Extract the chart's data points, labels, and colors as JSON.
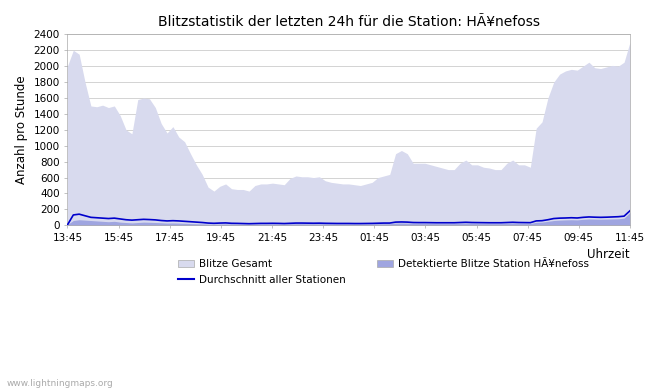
{
  "title": "Blitzstatistik der letzten 24h für die Station: HÃ¥nefoss",
  "xlabel": "Uhrzeit",
  "ylabel": "Anzahl pro Stunde",
  "ylim": [
    0,
    2400
  ],
  "yticks": [
    0,
    200,
    400,
    600,
    800,
    1000,
    1200,
    1400,
    1600,
    1800,
    2000,
    2200,
    2400
  ],
  "xtick_labels": [
    "13:45",
    "15:45",
    "17:45",
    "19:45",
    "21:45",
    "23:45",
    "01:45",
    "03:45",
    "05:45",
    "07:45",
    "09:45",
    "11:45"
  ],
  "bg_color": "#ffffff",
  "grid_color": "#cccccc",
  "fill_color_gesamt": "#d8daee",
  "fill_color_station": "#9fa5e0",
  "line_color": "#0000cc",
  "watermark": "www.lightningmaps.org",
  "legend": {
    "blitze_gesamt": "Blitze Gesamt",
    "durchschnitt": "Durchschnitt aller Stationen",
    "detektierte": "Detektierte Blitze Station HÃ¥nefoss"
  },
  "gesamt_data": [
    2000,
    2200,
    2150,
    1800,
    1500,
    1490,
    1510,
    1480,
    1500,
    1380,
    1200,
    1150,
    1580,
    1600,
    1590,
    1480,
    1280,
    1160,
    1240,
    1110,
    1050,
    900,
    760,
    640,
    480,
    430,
    490,
    520,
    460,
    450,
    450,
    430,
    500,
    520,
    520,
    530,
    520,
    510,
    590,
    620,
    610,
    610,
    600,
    610,
    560,
    540,
    530,
    520,
    520,
    510,
    500,
    520,
    540,
    600,
    620,
    640,
    900,
    940,
    900,
    780,
    780,
    780,
    760,
    740,
    720,
    700,
    700,
    780,
    820,
    760,
    760,
    730,
    720,
    700,
    700,
    780,
    820,
    760,
    760,
    730,
    1220,
    1300,
    1600,
    1800,
    1900,
    1940,
    1960,
    1950,
    2000,
    2050,
    1980,
    1970,
    1990,
    2010,
    2000,
    2050,
    2300
  ],
  "station_data": [
    10,
    60,
    70,
    65,
    60,
    55,
    50,
    45,
    50,
    40,
    35,
    30,
    35,
    40,
    38,
    35,
    32,
    28,
    30,
    28,
    25,
    22,
    20,
    18,
    15,
    14,
    16,
    18,
    15,
    14,
    13,
    12,
    14,
    15,
    15,
    16,
    15,
    14,
    18,
    20,
    20,
    19,
    18,
    19,
    18,
    17,
    16,
    16,
    16,
    15,
    15,
    16,
    17,
    19,
    20,
    20,
    28,
    30,
    28,
    25,
    24,
    24,
    23,
    22,
    22,
    22,
    22,
    25,
    28,
    25,
    24,
    23,
    22,
    22,
    22,
    25,
    28,
    25,
    24,
    23,
    38,
    40,
    50,
    60,
    65,
    68,
    70,
    68,
    75,
    80,
    78,
    76,
    78,
    80,
    82,
    90,
    162
  ],
  "avg_data": [
    5,
    130,
    140,
    120,
    100,
    95,
    90,
    85,
    90,
    80,
    70,
    65,
    70,
    75,
    72,
    68,
    60,
    55,
    58,
    55,
    50,
    45,
    40,
    35,
    28,
    25,
    28,
    30,
    25,
    24,
    22,
    20,
    22,
    24,
    24,
    25,
    24,
    22,
    25,
    28,
    28,
    27,
    26,
    27,
    25,
    24,
    23,
    23,
    23,
    22,
    22,
    23,
    24,
    26,
    28,
    28,
    40,
    42,
    40,
    35,
    34,
    34,
    33,
    32,
    32,
    32,
    32,
    35,
    38,
    35,
    34,
    33,
    32,
    32,
    32,
    35,
    38,
    35,
    34,
    33,
    55,
    58,
    70,
    85,
    90,
    92,
    95,
    92,
    100,
    105,
    102,
    100,
    102,
    105,
    108,
    115,
    182
  ]
}
